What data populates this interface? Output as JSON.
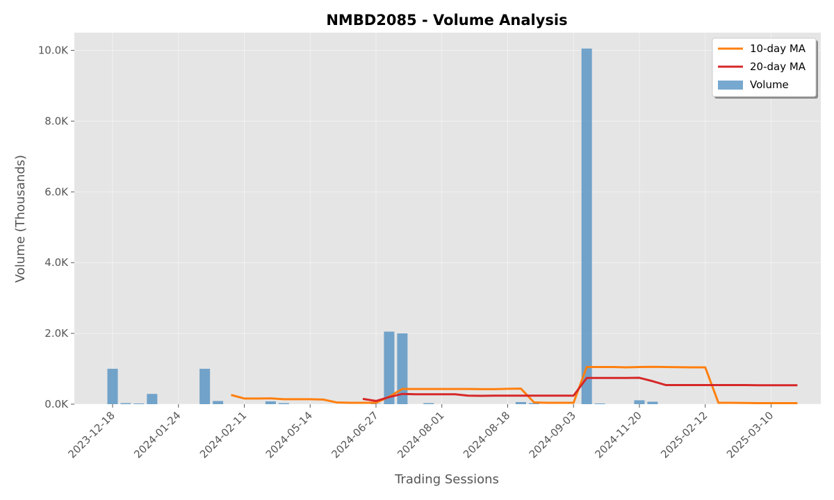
{
  "chart_data": {
    "type": "bar",
    "title": "NMBD2085 - Volume Analysis",
    "xlabel": "Trading Sessions",
    "ylabel": "Volume (Thousands)",
    "ylim": [
      0,
      10500
    ],
    "y_ticks": [
      0,
      2000,
      4000,
      6000,
      8000,
      10000
    ],
    "y_tick_labels": [
      "0.0K",
      "2.0K",
      "4.0K",
      "6.0K",
      "8.0K",
      "10.0K"
    ],
    "x_tick_labels": [
      "2023-12-18",
      "2024-01-24",
      "2024-02-11",
      "2024-05-14",
      "2024-06-27",
      "2024-08-01",
      "2024-08-18",
      "2024-09-03",
      "2024-11-20",
      "2025-02-12",
      "2025-03-10"
    ],
    "x_tick_sessions": [
      0,
      5,
      10,
      15,
      20,
      25,
      30,
      35,
      40,
      45,
      50
    ],
    "sessions": 53,
    "grid": true,
    "legend_position": "top-right",
    "series": [
      {
        "name": "Volume",
        "kind": "bar",
        "color": "#4a8bbf",
        "values": [
          1000,
          30,
          20,
          290,
          0,
          0,
          0,
          1000,
          90,
          0,
          0,
          0,
          80,
          30,
          0,
          0,
          0,
          0,
          0,
          0,
          10,
          2050,
          2000,
          0,
          30,
          0,
          0,
          0,
          0,
          0,
          0,
          60,
          30,
          0,
          0,
          0,
          10050,
          20,
          0,
          0,
          110,
          70,
          0,
          0,
          0,
          0,
          0,
          0,
          0,
          0,
          60,
          0,
          0
        ]
      },
      {
        "name": "10-day MA",
        "kind": "line",
        "color": "#ff7f0e",
        "values": [
          null,
          null,
          null,
          null,
          null,
          null,
          null,
          null,
          null,
          260,
          160,
          160,
          165,
          140,
          140,
          140,
          130,
          50,
          40,
          40,
          40,
          210,
          430,
          430,
          430,
          430,
          430,
          430,
          425,
          425,
          435,
          440,
          50,
          40,
          40,
          40,
          1050,
          1050,
          1050,
          1040,
          1050,
          1055,
          1050,
          1045,
          1040,
          1040,
          40,
          40,
          35,
          30,
          30,
          30,
          30
        ]
      },
      {
        "name": "20-day MA",
        "kind": "line",
        "color": "#d62728",
        "values": [
          null,
          null,
          null,
          null,
          null,
          null,
          null,
          null,
          null,
          null,
          null,
          null,
          null,
          null,
          null,
          null,
          null,
          null,
          null,
          150,
          90,
          200,
          290,
          280,
          280,
          280,
          280,
          240,
          235,
          240,
          240,
          240,
          240,
          240,
          240,
          240,
          740,
          740,
          740,
          740,
          745,
          650,
          540,
          540,
          540,
          540,
          540,
          540,
          540,
          535,
          535,
          535,
          535
        ]
      }
    ]
  }
}
